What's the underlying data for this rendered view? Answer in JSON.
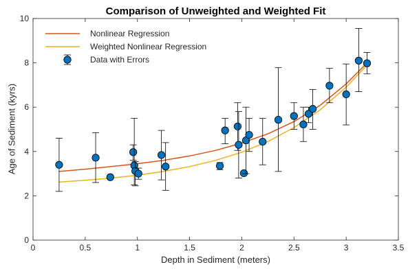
{
  "chart_data": {
    "type": "scatter",
    "title": "Comparison of Unweighted and Weighted Fit",
    "xlabel": "Depth in Sediment (meters)",
    "ylabel": "Age of Sediment (kyrs)",
    "xlim": [
      0,
      3.5
    ],
    "ylim": [
      0,
      10
    ],
    "x_ticks": [
      0,
      0.5,
      1,
      1.5,
      2,
      2.5,
      3,
      3.5
    ],
    "y_ticks": [
      0,
      2,
      4,
      6,
      8,
      10
    ],
    "x_tick_labels": [
      "0",
      "0.5",
      "1",
      "1.5",
      "2",
      "2.5",
      "3",
      "3.5"
    ],
    "y_tick_labels": [
      "0",
      "2",
      "4",
      "6",
      "8",
      "10"
    ],
    "grid": false,
    "legend_position": "top-left",
    "series": [
      {
        "name": "Nonlinear Regression",
        "type": "line",
        "color": "#D95319",
        "x": [
          0.25,
          0.5,
          0.75,
          1.0,
          1.25,
          1.5,
          1.75,
          2.0,
          2.25,
          2.5,
          2.75,
          3.0,
          3.2
        ],
        "y": [
          3.1,
          3.2,
          3.32,
          3.45,
          3.6,
          3.8,
          4.05,
          4.38,
          4.8,
          5.35,
          6.08,
          7.05,
          8.0
        ]
      },
      {
        "name": "Weighted Nonlinear Regression",
        "type": "line",
        "color": "#EDB120",
        "x": [
          0.25,
          0.5,
          0.75,
          1.0,
          1.25,
          1.5,
          1.75,
          2.0,
          2.25,
          2.5,
          2.75,
          3.0,
          3.2
        ],
        "y": [
          2.62,
          2.7,
          2.8,
          2.93,
          3.1,
          3.32,
          3.6,
          3.97,
          4.45,
          5.08,
          5.88,
          6.9,
          7.9
        ]
      },
      {
        "name": "Data with Errors",
        "type": "errorbar",
        "color": "#0072BD",
        "points": [
          {
            "x": 0.25,
            "y": 3.4,
            "low": 2.2,
            "high": 4.6
          },
          {
            "x": 0.6,
            "y": 3.72,
            "low": 2.6,
            "high": 4.85
          },
          {
            "x": 0.74,
            "y": 2.84,
            "low": 2.78,
            "high": 2.9
          },
          {
            "x": 0.96,
            "y": 3.97,
            "low": 3.6,
            "high": 4.3
          },
          {
            "x": 0.97,
            "y": 3.37,
            "low": 2.5,
            "high": 5.5
          },
          {
            "x": 0.98,
            "y": 3.12,
            "low": 2.45,
            "high": 3.55
          },
          {
            "x": 1.01,
            "y": 3.0,
            "low": 2.75,
            "high": 3.25
          },
          {
            "x": 1.23,
            "y": 3.84,
            "low": 2.72,
            "high": 4.95
          },
          {
            "x": 1.27,
            "y": 3.32,
            "low": 2.25,
            "high": 4.4
          },
          {
            "x": 1.79,
            "y": 3.35,
            "low": 3.18,
            "high": 3.5
          },
          {
            "x": 1.84,
            "y": 4.95,
            "low": 4.35,
            "high": 5.5
          },
          {
            "x": 1.96,
            "y": 5.13,
            "low": 4.05,
            "high": 6.2
          },
          {
            "x": 1.97,
            "y": 4.3,
            "low": 2.8,
            "high": 5.8
          },
          {
            "x": 2.02,
            "y": 3.02,
            "low": 2.94,
            "high": 3.1
          },
          {
            "x": 2.04,
            "y": 4.5,
            "low": 3.0,
            "high": 6.0
          },
          {
            "x": 2.07,
            "y": 4.75,
            "low": 4.0,
            "high": 5.5
          },
          {
            "x": 2.2,
            "y": 4.44,
            "low": 3.4,
            "high": 5.5
          },
          {
            "x": 2.35,
            "y": 5.43,
            "low": 3.1,
            "high": 7.78
          },
          {
            "x": 2.5,
            "y": 5.6,
            "low": 5.0,
            "high": 6.2
          },
          {
            "x": 2.59,
            "y": 5.22,
            "low": 4.45,
            "high": 6.0
          },
          {
            "x": 2.64,
            "y": 5.7,
            "low": 5.3,
            "high": 6.0
          },
          {
            "x": 2.68,
            "y": 5.92,
            "low": 5.0,
            "high": 6.8
          },
          {
            "x": 2.84,
            "y": 6.97,
            "low": 6.2,
            "high": 7.75
          },
          {
            "x": 3.0,
            "y": 6.58,
            "low": 5.2,
            "high": 7.95
          },
          {
            "x": 3.12,
            "y": 8.1,
            "low": 6.7,
            "high": 9.55
          },
          {
            "x": 3.2,
            "y": 7.98,
            "low": 7.5,
            "high": 8.47
          }
        ]
      }
    ]
  }
}
